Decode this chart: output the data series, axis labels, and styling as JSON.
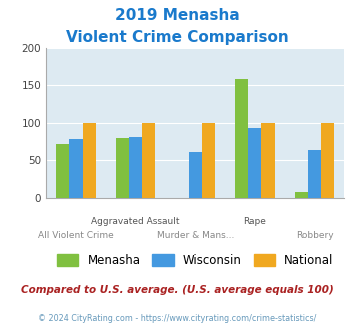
{
  "title_line1": "2019 Menasha",
  "title_line2": "Violent Crime Comparison",
  "categories": [
    "All Violent Crime",
    "Aggravated Assault",
    "Murder & Mans...",
    "Rape",
    "Robbery"
  ],
  "top_labels": [
    "",
    "Aggravated Assault",
    "",
    "Rape",
    ""
  ],
  "bottom_labels": [
    "All Violent Crime",
    "",
    "Murder & Mans...",
    "",
    "Robbery"
  ],
  "menasha": [
    72,
    80,
    0,
    158,
    8
  ],
  "wisconsin": [
    79,
    81,
    61,
    93,
    64
  ],
  "national": [
    100,
    100,
    100,
    100,
    100
  ],
  "colors": {
    "menasha": "#80c040",
    "wisconsin": "#4499e0",
    "national": "#f0a820"
  },
  "ylim": [
    0,
    200
  ],
  "yticks": [
    0,
    50,
    100,
    150,
    200
  ],
  "background_color": "#ddeaf2",
  "title_color": "#1a7acc",
  "footer_text": "Compared to U.S. average. (U.S. average equals 100)",
  "footer_color": "#aa2222",
  "copyright_text": "© 2024 CityRating.com - https://www.cityrating.com/crime-statistics/",
  "copyright_color": "#6699bb",
  "legend_labels": [
    "Menasha",
    "Wisconsin",
    "National"
  ],
  "bar_width": 0.22
}
